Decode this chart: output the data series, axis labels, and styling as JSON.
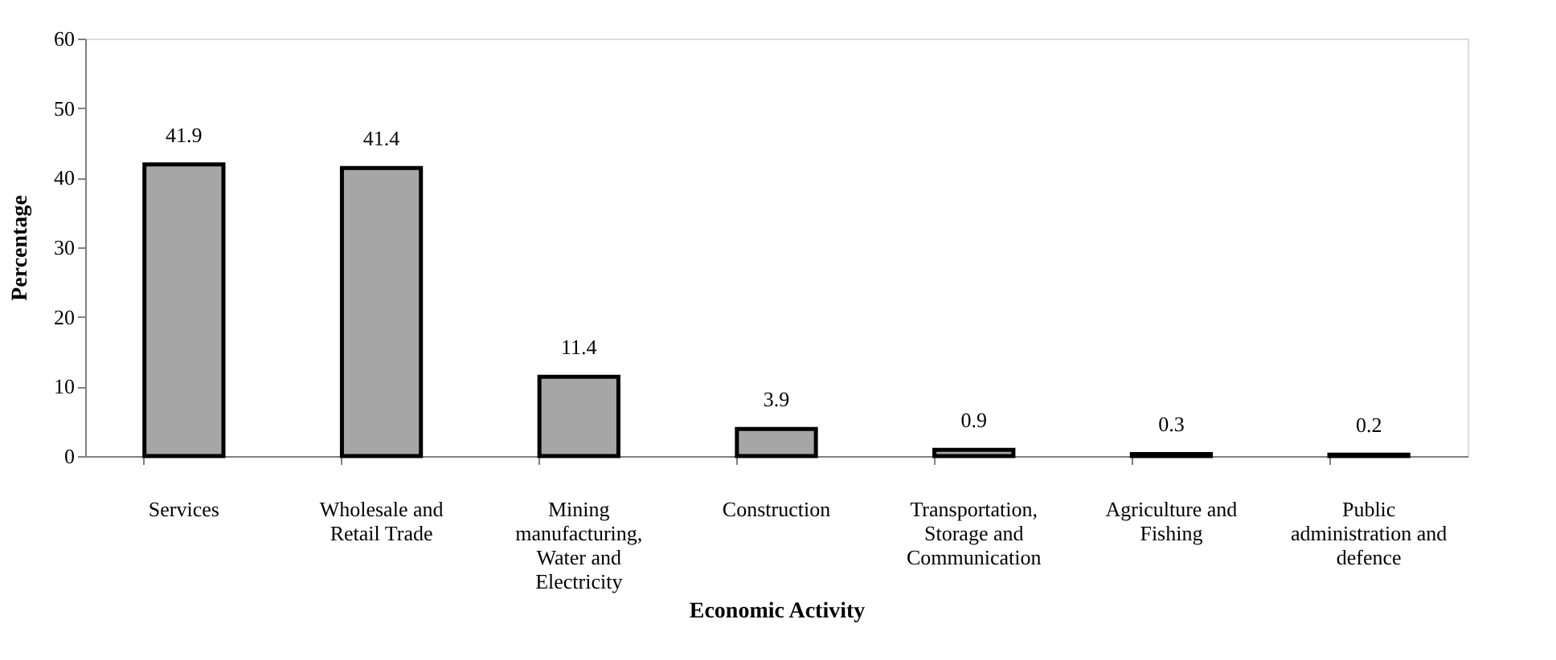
{
  "chart_data": {
    "type": "bar",
    "xlabel": "Economic Activity",
    "ylabel": "Percentage",
    "categories": [
      "Services",
      "Wholesale and Retail Trade",
      "Mining manufacturing, Water and Electricity",
      "Construction",
      "Transportation, Storage and Communication",
      "Agriculture and Fishing",
      "Public administration and defence"
    ],
    "values": [
      41.9,
      41.4,
      11.4,
      3.9,
      0.9,
      0.3,
      0.2
    ],
    "color": "#a6a6a6",
    "ylim": [
      0,
      60
    ],
    "yticks": [
      0,
      10,
      20,
      30,
      40,
      50,
      60
    ],
    "grid": false,
    "data_labels": true
  }
}
